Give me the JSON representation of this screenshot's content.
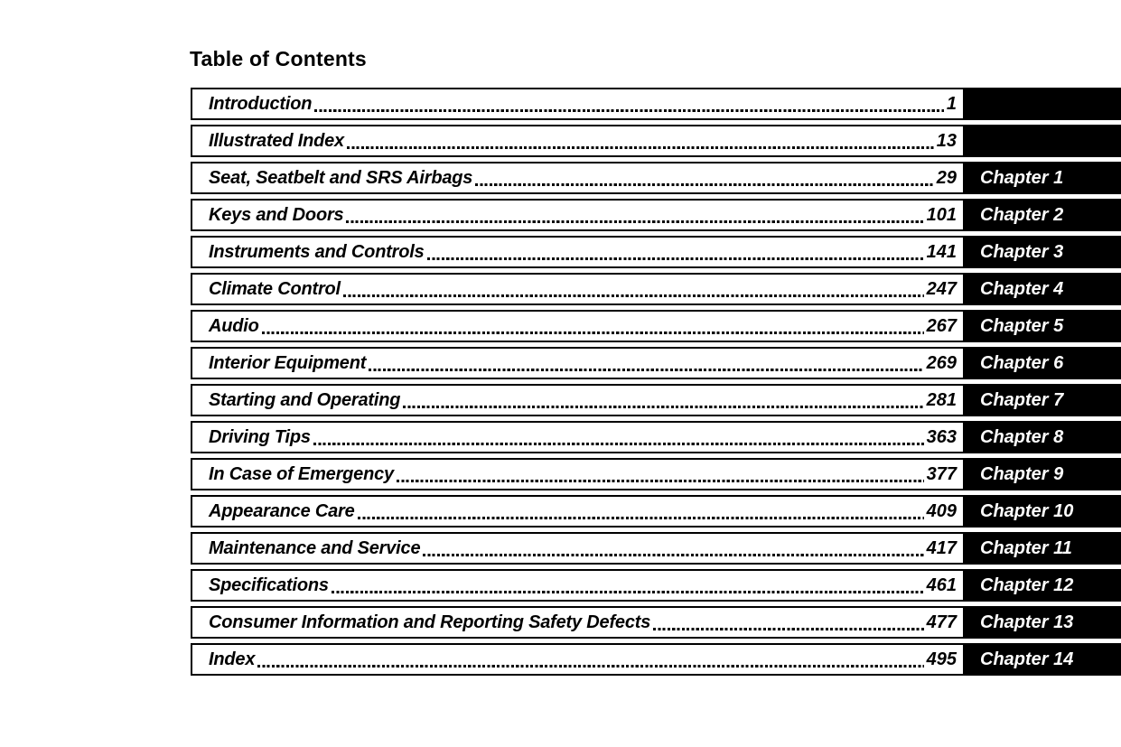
{
  "page": {
    "title": "Table of Contents"
  },
  "toc": {
    "entries": [
      {
        "label": "Introduction",
        "page": "1",
        "chapter": ""
      },
      {
        "label": "Illustrated Index",
        "page": "13",
        "chapter": ""
      },
      {
        "label": "Seat, Seatbelt and SRS Airbags",
        "page": "29",
        "chapter": "Chapter 1"
      },
      {
        "label": "Keys and Doors",
        "page": "101",
        "chapter": "Chapter 2"
      },
      {
        "label": "Instruments and Controls",
        "page": "141",
        "chapter": "Chapter 3"
      },
      {
        "label": "Climate Control",
        "page": "247",
        "chapter": "Chapter 4"
      },
      {
        "label": "Audio",
        "page": "267",
        "chapter": "Chapter 5"
      },
      {
        "label": "Interior Equipment",
        "page": "269",
        "chapter": "Chapter 6"
      },
      {
        "label": "Starting and Operating",
        "page": "281",
        "chapter": "Chapter 7"
      },
      {
        "label": "Driving Tips",
        "page": "363",
        "chapter": "Chapter 8"
      },
      {
        "label": "In Case of Emergency",
        "page": "377",
        "chapter": "Chapter 9"
      },
      {
        "label": "Appearance Care",
        "page": "409",
        "chapter": "Chapter 10"
      },
      {
        "label": "Maintenance and Service",
        "page": "417",
        "chapter": "Chapter 11"
      },
      {
        "label": "Specifications",
        "page": "461",
        "chapter": "Chapter 12"
      },
      {
        "label": "Consumer Information and Reporting Safety Defects",
        "page": "477",
        "chapter": "Chapter 13"
      },
      {
        "label": "Index",
        "page": "495",
        "chapter": "Chapter 14"
      }
    ]
  },
  "colors": {
    "background": "#ffffff",
    "text": "#000000",
    "border": "#000000",
    "tab_bg": "#000000",
    "tab_text": "#ffffff"
  }
}
